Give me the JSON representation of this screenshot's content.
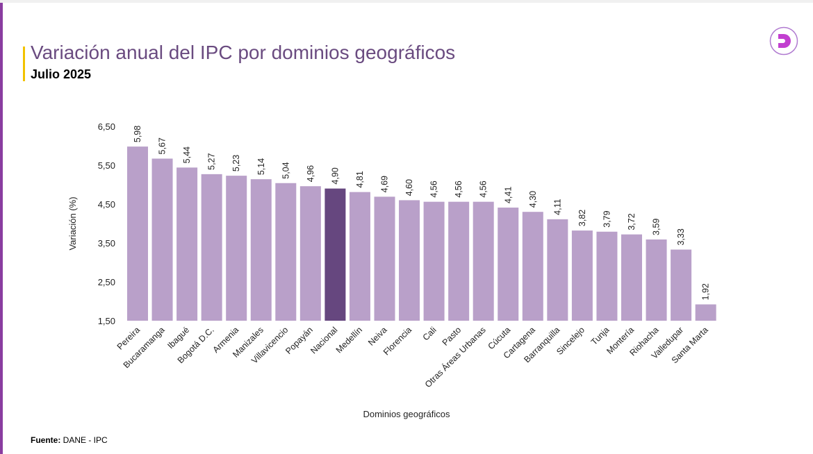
{
  "header": {
    "title": "Variación anual del IPC por dominios geográficos",
    "subtitle": "Julio 2025"
  },
  "footer": {
    "source_label": "Fuente:",
    "source_value": " DANE - IPC"
  },
  "logo": {
    "letter": "D"
  },
  "colors": {
    "bar": "#b9a0c9",
    "highlight": "#66477f",
    "title": "#6a4b80"
  },
  "chart_data": {
    "type": "bar",
    "title": "Variación anual del IPC por dominios geográficos",
    "xlabel": "Dominios geográficos",
    "ylabel": "Variación (%)",
    "ylim": [
      1.5,
      6.5
    ],
    "yticks": [
      "1,50",
      "2,50",
      "3,50",
      "4,50",
      "5,50",
      "6,50"
    ],
    "highlight": "Nacional",
    "categories": [
      "Pereira",
      "Bucaramanga",
      "Ibagué",
      "Bogotá D.C.",
      "Armenia",
      "Manizales",
      "Villavicencio",
      "Popayán",
      "Nacional",
      "Medellín",
      "Neiva",
      "Florencia",
      "Cali",
      "Pasto",
      "Otras Áreas Urbanas",
      "Cúcuta",
      "Cartagena",
      "Barranquilla",
      "Sincelejo",
      "Tunja",
      "Montería",
      "Riohacha",
      "Valledupar",
      "Santa Marta"
    ],
    "values": [
      5.98,
      5.67,
      5.44,
      5.27,
      5.23,
      5.14,
      5.04,
      4.96,
      4.9,
      4.81,
      4.69,
      4.6,
      4.56,
      4.56,
      4.56,
      4.41,
      4.3,
      4.11,
      3.82,
      3.79,
      3.72,
      3.59,
      3.33,
      1.92
    ]
  }
}
